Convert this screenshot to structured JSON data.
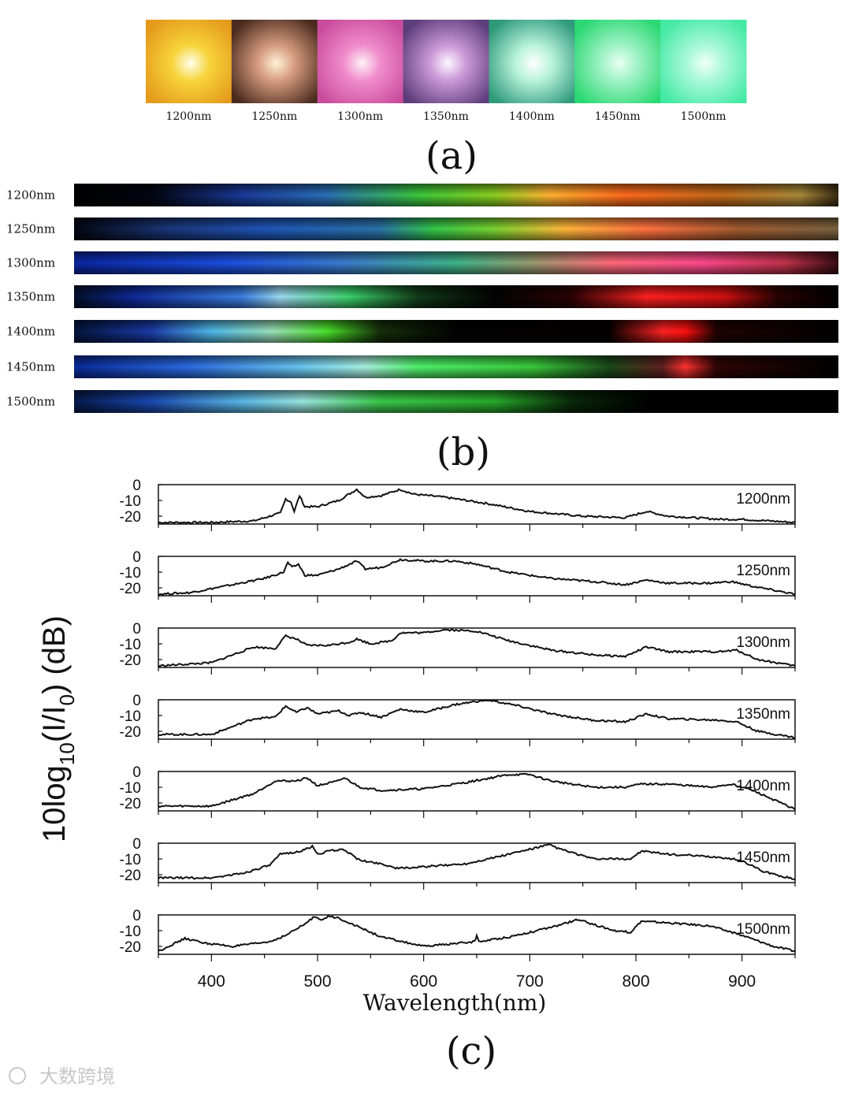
{
  "panel_a": {
    "label": "(a)",
    "tiles": [
      {
        "label": "1200nm",
        "outer": "#e59a1c",
        "mid": "#f7d43b",
        "core": "#ffffee"
      },
      {
        "label": "1250nm",
        "outer": "#4a2b1e",
        "mid": "#d69b7e",
        "core": "#fff2d8"
      },
      {
        "label": "1300nm",
        "outer": "#c94c9c",
        "mid": "#f08ccb",
        "core": "#fff2f8"
      },
      {
        "label": "1350nm",
        "outer": "#5d3c7b",
        "mid": "#c997d6",
        "core": "#fff6ff"
      },
      {
        "label": "1400nm",
        "outer": "#2f9a7a",
        "mid": "#b8f2dc",
        "core": "#ffffff"
      },
      {
        "label": "1450nm",
        "outer": "#2bd873",
        "mid": "#9ff2c5",
        "core": "#e8fff4"
      },
      {
        "label": "1500nm",
        "outer": "#43e9a4",
        "mid": "#a9f8da",
        "core": "#f0fffa"
      }
    ]
  },
  "panel_b": {
    "label": "(b)",
    "rows": [
      {
        "label": "1200nm",
        "stops": [
          [
            0,
            "#000000"
          ],
          [
            0.1,
            "#020410"
          ],
          [
            0.22,
            "#1a3a9a"
          ],
          [
            0.33,
            "#2a6fb8"
          ],
          [
            0.45,
            "#39c83c"
          ],
          [
            0.55,
            "#8bd01e"
          ],
          [
            0.62,
            "#ffb330"
          ],
          [
            0.72,
            "#ff6a1c"
          ],
          [
            0.85,
            "#c26a1a"
          ],
          [
            0.95,
            "#a98a3a"
          ],
          [
            1,
            "#3a2a10"
          ]
        ]
      },
      {
        "label": "1250nm",
        "stops": [
          [
            0,
            "#030612"
          ],
          [
            0.12,
            "#1a3577"
          ],
          [
            0.25,
            "#1f55b8"
          ],
          [
            0.4,
            "#2a72a8"
          ],
          [
            0.47,
            "#33c84a"
          ],
          [
            0.55,
            "#7bd431"
          ],
          [
            0.64,
            "#ffb83a"
          ],
          [
            0.75,
            "#ff7040"
          ],
          [
            0.87,
            "#a35c30"
          ],
          [
            1,
            "#7a6240"
          ]
        ]
      },
      {
        "label": "1300nm",
        "stops": [
          [
            0,
            "#0a25a0"
          ],
          [
            0.2,
            "#1b4fe0"
          ],
          [
            0.35,
            "#3b7bd0"
          ],
          [
            0.5,
            "#3fb58a"
          ],
          [
            0.6,
            "#9a9a70"
          ],
          [
            0.7,
            "#ff6a7a"
          ],
          [
            0.82,
            "#ff4a8c"
          ],
          [
            0.93,
            "#c0324a"
          ],
          [
            1,
            "#3a0c14"
          ]
        ]
      },
      {
        "label": "1350nm",
        "stops": [
          [
            0,
            "#03102c"
          ],
          [
            0.08,
            "#0f2a9a"
          ],
          [
            0.22,
            "#3a7ee0"
          ],
          [
            0.27,
            "#9bd8f0"
          ],
          [
            0.36,
            "#3bd06a"
          ],
          [
            0.45,
            "#123a18"
          ],
          [
            0.55,
            "#030303"
          ],
          [
            0.65,
            "#2a0204"
          ],
          [
            0.75,
            "#ff2020"
          ],
          [
            0.85,
            "#d01010"
          ],
          [
            0.92,
            "#2a0202"
          ],
          [
            1,
            "#000000"
          ]
        ]
      },
      {
        "label": "1400nm",
        "stops": [
          [
            0,
            "#03153c"
          ],
          [
            0.1,
            "#1a3aa8"
          ],
          [
            0.18,
            "#4fb8e8"
          ],
          [
            0.26,
            "#9be0b8"
          ],
          [
            0.33,
            "#4ae22a"
          ],
          [
            0.4,
            "#16300a"
          ],
          [
            0.5,
            "#020202"
          ],
          [
            0.7,
            "#050000"
          ],
          [
            0.77,
            "#ff2222"
          ],
          [
            0.8,
            "#ff1010"
          ],
          [
            0.84,
            "#200202"
          ],
          [
            1,
            "#000000"
          ]
        ]
      },
      {
        "label": "1450nm",
        "stops": [
          [
            0,
            "#0a2a9a"
          ],
          [
            0.15,
            "#2a6ae0"
          ],
          [
            0.3,
            "#6bc8f0"
          ],
          [
            0.38,
            "#a8f0e0"
          ],
          [
            0.45,
            "#4ef06a"
          ],
          [
            0.6,
            "#39c83a"
          ],
          [
            0.7,
            "#1a4a1a"
          ],
          [
            0.77,
            "#602020"
          ],
          [
            0.8,
            "#ff3030"
          ],
          [
            0.84,
            "#300505"
          ],
          [
            1,
            "#000000"
          ]
        ]
      },
      {
        "label": "1500nm",
        "stops": [
          [
            0,
            "#05194a"
          ],
          [
            0.1,
            "#1a48b0"
          ],
          [
            0.22,
            "#5ab8e6"
          ],
          [
            0.3,
            "#9ae6e0"
          ],
          [
            0.4,
            "#3ac84a"
          ],
          [
            0.55,
            "#28a82a"
          ],
          [
            0.65,
            "#0a2a0a"
          ],
          [
            0.75,
            "#000000"
          ],
          [
            1,
            "#000000"
          ]
        ]
      }
    ]
  },
  "panel_c": {
    "label": "(c)",
    "ylabel_parts": [
      "10log",
      "10",
      "(I/I",
      "0",
      ") (dB)"
    ],
    "xlabel": "Wavelength(nm)",
    "xticks": [
      400,
      500,
      600,
      700,
      800,
      900
    ],
    "yticks": [
      0,
      -10,
      -20
    ]
  },
  "chart_data": {
    "type": "line",
    "xlim": [
      350,
      950
    ],
    "ylim": [
      -25,
      0
    ],
    "series": [
      {
        "name": "1200nm",
        "points": [
          [
            350,
            -24
          ],
          [
            400,
            -24
          ],
          [
            440,
            -23
          ],
          [
            465,
            -18
          ],
          [
            470,
            -9
          ],
          [
            475,
            -11
          ],
          [
            478,
            -17
          ],
          [
            483,
            -7
          ],
          [
            488,
            -14
          ],
          [
            500,
            -14
          ],
          [
            520,
            -10
          ],
          [
            537,
            -3
          ],
          [
            545,
            -8
          ],
          [
            560,
            -7
          ],
          [
            578,
            -3
          ],
          [
            590,
            -6
          ],
          [
            620,
            -8
          ],
          [
            660,
            -12
          ],
          [
            700,
            -17
          ],
          [
            750,
            -20
          ],
          [
            790,
            -21
          ],
          [
            810,
            -17
          ],
          [
            830,
            -20
          ],
          [
            880,
            -22
          ],
          [
            900,
            -22
          ],
          [
            950,
            -24
          ]
        ]
      },
      {
        "name": "1250nm",
        "points": [
          [
            350,
            -24
          ],
          [
            380,
            -23
          ],
          [
            420,
            -18
          ],
          [
            450,
            -14
          ],
          [
            468,
            -10
          ],
          [
            472,
            -4
          ],
          [
            476,
            -7
          ],
          [
            482,
            -5
          ],
          [
            488,
            -12
          ],
          [
            500,
            -12
          ],
          [
            520,
            -8
          ],
          [
            537,
            -3
          ],
          [
            545,
            -8
          ],
          [
            560,
            -7
          ],
          [
            578,
            -2
          ],
          [
            600,
            -3
          ],
          [
            630,
            -3
          ],
          [
            650,
            -5
          ],
          [
            680,
            -10
          ],
          [
            720,
            -14
          ],
          [
            760,
            -16
          ],
          [
            790,
            -18
          ],
          [
            810,
            -15
          ],
          [
            830,
            -17
          ],
          [
            870,
            -17
          ],
          [
            890,
            -16
          ],
          [
            910,
            -19
          ],
          [
            950,
            -24
          ]
        ]
      },
      {
        "name": "1300nm",
        "points": [
          [
            350,
            -24
          ],
          [
            400,
            -22
          ],
          [
            420,
            -17
          ],
          [
            440,
            -12
          ],
          [
            460,
            -13
          ],
          [
            470,
            -5
          ],
          [
            480,
            -7
          ],
          [
            490,
            -11
          ],
          [
            510,
            -11
          ],
          [
            530,
            -9
          ],
          [
            537,
            -7
          ],
          [
            550,
            -10
          ],
          [
            570,
            -8
          ],
          [
            578,
            -3
          ],
          [
            600,
            -3
          ],
          [
            620,
            -1
          ],
          [
            650,
            -2
          ],
          [
            680,
            -8
          ],
          [
            720,
            -14
          ],
          [
            760,
            -17
          ],
          [
            790,
            -18
          ],
          [
            810,
            -12
          ],
          [
            830,
            -15
          ],
          [
            880,
            -15
          ],
          [
            895,
            -14
          ],
          [
            915,
            -20
          ],
          [
            950,
            -24
          ]
        ]
      },
      {
        "name": "1350nm",
        "points": [
          [
            350,
            -22
          ],
          [
            400,
            -22
          ],
          [
            420,
            -17
          ],
          [
            440,
            -12
          ],
          [
            460,
            -11
          ],
          [
            470,
            -4
          ],
          [
            480,
            -8
          ],
          [
            490,
            -5
          ],
          [
            500,
            -9
          ],
          [
            520,
            -7
          ],
          [
            530,
            -10
          ],
          [
            540,
            -8
          ],
          [
            560,
            -11
          ],
          [
            578,
            -6
          ],
          [
            600,
            -8
          ],
          [
            630,
            -3
          ],
          [
            660,
            0
          ],
          [
            690,
            -4
          ],
          [
            720,
            -9
          ],
          [
            760,
            -13
          ],
          [
            790,
            -14
          ],
          [
            810,
            -9
          ],
          [
            830,
            -12
          ],
          [
            880,
            -13
          ],
          [
            895,
            -14
          ],
          [
            915,
            -20
          ],
          [
            950,
            -24
          ]
        ]
      },
      {
        "name": "1400nm",
        "points": [
          [
            350,
            -22
          ],
          [
            400,
            -22
          ],
          [
            420,
            -18
          ],
          [
            440,
            -14
          ],
          [
            460,
            -6
          ],
          [
            480,
            -6
          ],
          [
            490,
            -4
          ],
          [
            500,
            -9
          ],
          [
            520,
            -6
          ],
          [
            525,
            -4
          ],
          [
            540,
            -10
          ],
          [
            560,
            -12
          ],
          [
            600,
            -11
          ],
          [
            640,
            -7
          ],
          [
            680,
            -2
          ],
          [
            700,
            -2
          ],
          [
            720,
            -6
          ],
          [
            760,
            -10
          ],
          [
            790,
            -10
          ],
          [
            805,
            -8
          ],
          [
            830,
            -8
          ],
          [
            870,
            -10
          ],
          [
            890,
            -8
          ],
          [
            910,
            -12
          ],
          [
            950,
            -24
          ]
        ]
      },
      {
        "name": "1450nm",
        "points": [
          [
            350,
            -22
          ],
          [
            400,
            -22
          ],
          [
            430,
            -19
          ],
          [
            455,
            -14
          ],
          [
            465,
            -7
          ],
          [
            485,
            -5
          ],
          [
            495,
            -2
          ],
          [
            500,
            -7
          ],
          [
            510,
            -5
          ],
          [
            525,
            -4
          ],
          [
            540,
            -11
          ],
          [
            560,
            -13
          ],
          [
            575,
            -16
          ],
          [
            600,
            -15
          ],
          [
            640,
            -13
          ],
          [
            680,
            -7
          ],
          [
            718,
            -1
          ],
          [
            730,
            -4
          ],
          [
            760,
            -10
          ],
          [
            795,
            -10
          ],
          [
            805,
            -5
          ],
          [
            830,
            -7
          ],
          [
            880,
            -9
          ],
          [
            900,
            -11
          ],
          [
            920,
            -18
          ],
          [
            950,
            -23
          ]
        ]
      },
      {
        "name": "1500nm",
        "points": [
          [
            350,
            -23
          ],
          [
            375,
            -15
          ],
          [
            395,
            -18
          ],
          [
            420,
            -20
          ],
          [
            455,
            -17
          ],
          [
            470,
            -13
          ],
          [
            490,
            -5
          ],
          [
            497,
            -1
          ],
          [
            505,
            -3
          ],
          [
            510,
            -1
          ],
          [
            520,
            -2
          ],
          [
            530,
            -5
          ],
          [
            560,
            -14
          ],
          [
            600,
            -20
          ],
          [
            648,
            -17
          ],
          [
            650,
            -13
          ],
          [
            652,
            -17
          ],
          [
            680,
            -14
          ],
          [
            720,
            -8
          ],
          [
            745,
            -3
          ],
          [
            760,
            -6
          ],
          [
            780,
            -10
          ],
          [
            795,
            -11
          ],
          [
            805,
            -4
          ],
          [
            830,
            -5
          ],
          [
            870,
            -7
          ],
          [
            900,
            -13
          ],
          [
            930,
            -20
          ],
          [
            950,
            -23
          ]
        ]
      }
    ]
  },
  "watermark": {
    "text": "大数跨境"
  }
}
